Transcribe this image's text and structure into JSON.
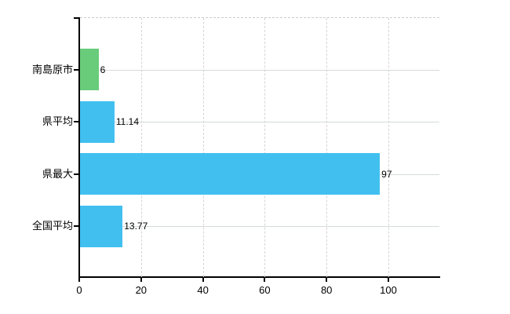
{
  "chart_data": {
    "type": "bar",
    "orientation": "horizontal",
    "categories": [
      "南島原市",
      "県平均",
      "県最大",
      "全国平均"
    ],
    "values": [
      6,
      11.14,
      97,
      13.77
    ],
    "value_labels": [
      "6",
      "11.14",
      "97",
      "13.77"
    ],
    "series": [
      {
        "name": "南島原市",
        "value": 6,
        "color": "#68cc7a"
      },
      {
        "name": "県平均",
        "value": 11.14,
        "color": "#41c0f0"
      },
      {
        "name": "県最大",
        "value": 97,
        "color": "#41c0f0"
      },
      {
        "name": "全国平均",
        "value": 13.77,
        "color": "#41c0f0"
      }
    ],
    "bar_colors": [
      "#68cc7a",
      "#41c0f0",
      "#41c0f0",
      "#41c0f0"
    ],
    "x_tick_labels": [
      "0",
      "20",
      "40",
      "60",
      "80",
      "100"
    ],
    "x_tick_values": [
      0,
      20,
      40,
      60,
      80,
      100
    ],
    "xlim": [
      0,
      116.5
    ],
    "grid": {
      "horizontal": "solid",
      "vertical": "dashed",
      "top_border": "dashed"
    },
    "legend_position": "none",
    "title": ""
  },
  "colors": {
    "bar_blue": "#41c0f0",
    "bar_green": "#68cc7a",
    "axis": "#000000",
    "gridline_horizontal": "#d4dcd4",
    "gridline_vertical": "#d7d3da",
    "plot_top_border": "#cccccc",
    "text": "#000000",
    "background": "#ffffff"
  }
}
